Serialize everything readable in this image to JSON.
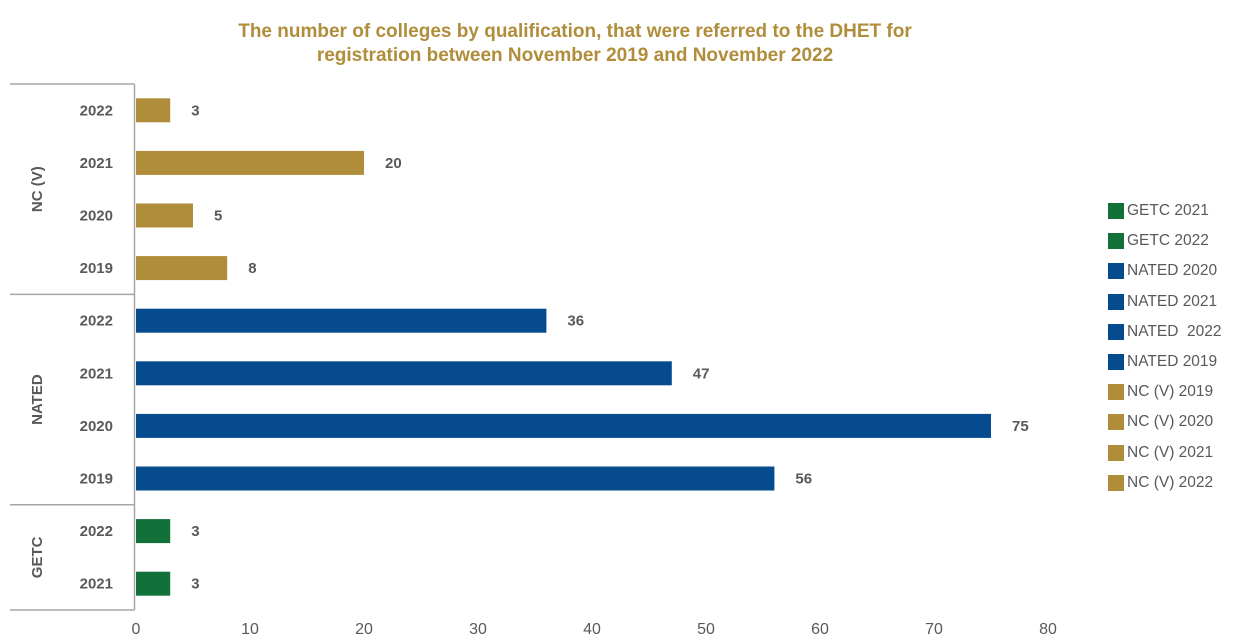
{
  "title": {
    "line1": "The number of colleges by qualification, that were referred to the DHET for",
    "line2": "registration between November 2019 and November 2022"
  },
  "colors": {
    "title": "#b08d3a",
    "GETC": "#127039",
    "NATED": "#064b8d",
    "NC (V)": "#b08d3a",
    "axis": "#a6a6a6",
    "labels": "#595959"
  },
  "chart_data": {
    "type": "bar",
    "orientation": "horizontal",
    "title": "The number of colleges by qualification, that were referred to the DHET for registration between November 2019 and November 2022",
    "groups": [
      {
        "name": "NC (V)",
        "bars": [
          {
            "year": "2022",
            "value": 3
          },
          {
            "year": "2021",
            "value": 20
          },
          {
            "year": "2020",
            "value": 5
          },
          {
            "year": "2019",
            "value": 8
          }
        ]
      },
      {
        "name": "NATED",
        "bars": [
          {
            "year": "2022",
            "value": 36
          },
          {
            "year": "2021",
            "value": 47
          },
          {
            "year": "2020",
            "value": 75
          },
          {
            "year": "2019",
            "value": 56
          }
        ]
      },
      {
        "name": "GETC",
        "bars": [
          {
            "year": "2022",
            "value": 3
          },
          {
            "year": "2021",
            "value": 3
          }
        ]
      }
    ],
    "xlim": [
      0,
      80
    ],
    "xticks": [
      0,
      10,
      20,
      30,
      40,
      50,
      60,
      70,
      80
    ],
    "grid": false,
    "legend": {
      "position": "right",
      "entries": [
        {
          "label": "GETC 2021",
          "group": "GETC"
        },
        {
          "label": "GETC 2022",
          "group": "GETC"
        },
        {
          "label": "NATED 2020",
          "group": "NATED"
        },
        {
          "label": "NATED 2021",
          "group": "NATED"
        },
        {
          "label": "NATED  2022",
          "group": "NATED"
        },
        {
          "label": "NATED 2019",
          "group": "NATED"
        },
        {
          "label": "NC (V) 2019",
          "group": "NC (V)"
        },
        {
          "label": "NC (V) 2020",
          "group": "NC (V)"
        },
        {
          "label": "NC (V) 2021",
          "group": "NC (V)"
        },
        {
          "label": "NC (V) 2022",
          "group": "NC (V)"
        }
      ]
    }
  }
}
